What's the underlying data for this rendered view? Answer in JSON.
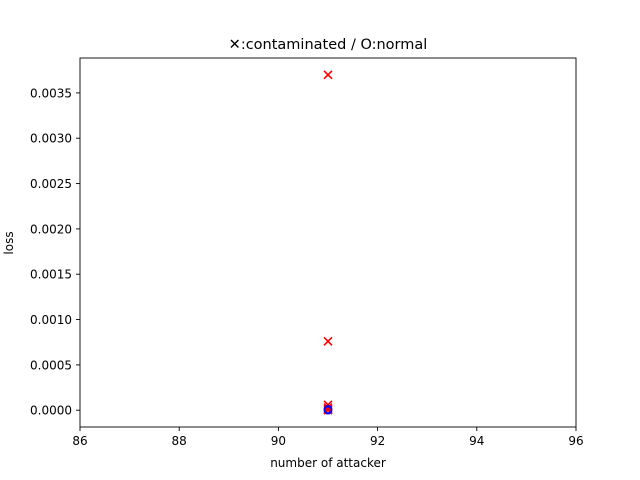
{
  "chart_data": {
    "type": "scatter",
    "title": "✕:contaminated / O:normal",
    "xlabel": "number of attacker",
    "ylabel": "loss",
    "xlim": [
      86,
      96
    ],
    "ylim": [
      -0.000185,
      0.003885
    ],
    "xticks": [
      86,
      88,
      90,
      92,
      94,
      96
    ],
    "xtick_labels": [
      "86",
      "88",
      "90",
      "92",
      "94",
      "96"
    ],
    "yticks": [
      0.0,
      0.0005,
      0.001,
      0.0015,
      0.002,
      0.0025,
      0.003,
      0.0035
    ],
    "ytick_labels": [
      "0.0000",
      "0.0005",
      "0.0010",
      "0.0015",
      "0.0020",
      "0.0025",
      "0.0030",
      "0.0035"
    ],
    "grid": false,
    "series": [
      {
        "marker": "x",
        "color": "#ff0000",
        "points": [
          {
            "x": 91,
            "y": 0.0037
          },
          {
            "x": 91,
            "y": 0.00076
          },
          {
            "x": 91,
            "y": 6e-05
          },
          {
            "x": 91,
            "y": 3e-05
          },
          {
            "x": 91,
            "y": 1e-05
          },
          {
            "x": 91,
            "y": 0.0
          }
        ]
      },
      {
        "marker": "o",
        "color": "#0000ff",
        "points": [
          {
            "x": 91,
            "y": 0.0
          },
          {
            "x": 91,
            "y": 1e-05
          },
          {
            "x": 91,
            "y": 5e-06
          }
        ]
      }
    ]
  }
}
